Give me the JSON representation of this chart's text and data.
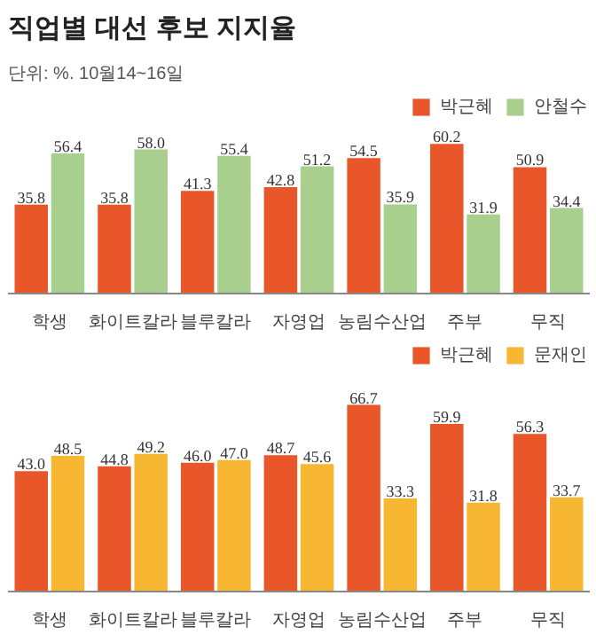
{
  "chart_data": [
    {
      "type": "bar",
      "title": "직업별 대선 후보 지지율",
      "subtitle": "단위: %. 10월14~16일",
      "categories": [
        "학생",
        "화이트칼라",
        "블루칼라",
        "자영업",
        "농림수산업",
        "주부",
        "무직"
      ],
      "series": [
        {
          "name": "박근혜",
          "color": "#e8562a",
          "values": [
            35.8,
            35.8,
            41.3,
            42.8,
            54.5,
            60.2,
            50.9
          ],
          "value_labels": [
            "35.8",
            "35.8",
            "41.3",
            "42.8",
            "54.5",
            "60.2",
            "50.9"
          ]
        },
        {
          "name": "안철수",
          "color": "#a8cf8e",
          "values": [
            56.4,
            58.0,
            55.4,
            51.2,
            35.9,
            31.9,
            34.4
          ],
          "value_labels": [
            "56.4",
            "58.0",
            "55.4",
            "51.2",
            "35.9",
            "31.9",
            "34.4"
          ]
        }
      ],
      "legend": "top right",
      "grid": false
    },
    {
      "type": "bar",
      "categories": [
        "학생",
        "화이트칼라",
        "블루칼라",
        "자영업",
        "농림수산업",
        "주부",
        "무직"
      ],
      "series": [
        {
          "name": "박근혜",
          "color": "#e8562a",
          "values": [
            43.0,
            44.8,
            46.0,
            48.7,
            66.7,
            59.9,
            56.3
          ],
          "value_labels": [
            "43.0",
            "44.8",
            "46.0",
            "48.7",
            "66.7",
            "59.9",
            "56.3"
          ]
        },
        {
          "name": "문재인",
          "color": "#f7b733",
          "values": [
            48.5,
            49.2,
            47.0,
            45.6,
            33.3,
            31.8,
            33.7
          ],
          "value_labels": [
            "48.5",
            "49.2",
            "47.0",
            "45.6",
            "33.3",
            "31.8",
            "33.7"
          ]
        }
      ],
      "legend": "top right",
      "grid": false
    }
  ]
}
